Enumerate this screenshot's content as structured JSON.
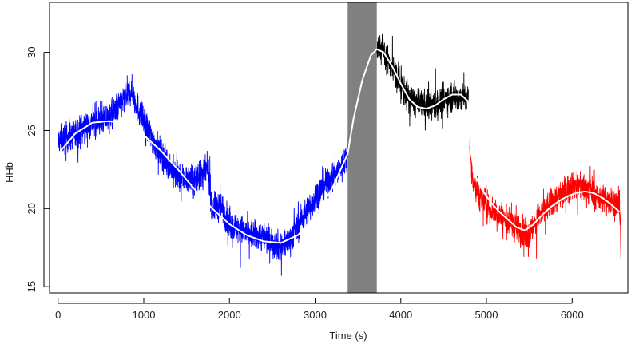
{
  "chart_data": {
    "type": "line",
    "xlabel": "Time (s)",
    "ylabel": "HHb",
    "xlim": [
      -100,
      6650
    ],
    "ylim": [
      14.6,
      33.2
    ],
    "xticks": [
      0,
      1000,
      2000,
      3000,
      4000,
      5000,
      6000
    ],
    "yticks": [
      15,
      20,
      25,
      30
    ],
    "grid": false,
    "shaded_region": {
      "x": [
        3380,
        3720
      ],
      "color": "#808080"
    },
    "series": [
      {
        "style": "noisy",
        "color": "#0000ff",
        "x": [
          0,
          200,
          400,
          600,
          800,
          850,
          1000,
          1200,
          1400,
          1600,
          1750,
          1800,
          1900,
          2000,
          2200,
          2400,
          2600,
          2700,
          2900,
          3100,
          3300,
          3380
        ],
        "y": [
          24.3,
          24.8,
          25.5,
          25.8,
          27.2,
          27.6,
          25.5,
          23.5,
          22.0,
          21.8,
          22.5,
          20.0,
          20.2,
          19.0,
          18.4,
          18.2,
          17.5,
          18.0,
          19.8,
          21.5,
          22.6,
          23.5
        ]
      },
      {
        "style": "noisy",
        "color": "#000000",
        "x": [
          3720,
          3800,
          3900,
          4000,
          4100,
          4200,
          4300,
          4400,
          4500,
          4600,
          4700,
          4790
        ],
        "y": [
          30.5,
          30.0,
          29.0,
          27.9,
          27.0,
          26.7,
          26.6,
          26.6,
          26.9,
          27.2,
          27.1,
          27.0
        ]
      },
      {
        "style": "noisy",
        "color": "#ff0000",
        "x": [
          4790,
          4830,
          4900,
          5000,
          5100,
          5200,
          5300,
          5400,
          5500,
          5600,
          5700,
          5800,
          5900,
          6000,
          6100,
          6200,
          6300,
          6400,
          6500,
          6560,
          6570
        ],
        "y": [
          25.8,
          22.2,
          21.0,
          20.2,
          19.8,
          19.4,
          19.0,
          18.6,
          18.3,
          19.4,
          20.0,
          20.6,
          21.0,
          21.6,
          21.4,
          21.2,
          20.8,
          20.6,
          20.4,
          20.0,
          16.5
        ]
      },
      {
        "style": "smooth",
        "color": "#ffffff",
        "x": [
          0,
          200,
          400,
          600,
          800,
          1000,
          1200,
          1400,
          1600,
          1800,
          2000,
          2200,
          2400,
          2600,
          2800,
          3000,
          3200,
          3380
        ],
        "y": [
          23.5,
          24.8,
          25.5,
          25.6,
          25.4,
          24.7,
          23.7,
          22.5,
          21.2,
          20.0,
          19.0,
          18.3,
          17.9,
          17.8,
          18.3,
          19.5,
          21.3,
          23.5
        ]
      },
      {
        "style": "smooth",
        "color": "#ffffff",
        "x": [
          3380,
          3450,
          3550,
          3650,
          3720,
          3800,
          3900,
          4000,
          4100,
          4200,
          4300,
          4400,
          4500,
          4600,
          4700,
          4780
        ],
        "y": [
          23.5,
          25.8,
          28.2,
          29.8,
          30.2,
          30.0,
          29.1,
          28.0,
          27.0,
          26.5,
          26.4,
          26.6,
          27.0,
          27.3,
          27.3,
          26.9
        ]
      },
      {
        "style": "smooth",
        "color": "#ffffff",
        "x": [
          4780,
          4810,
          4860,
          4950,
          5050,
          5150,
          5250,
          5350,
          5450,
          5550,
          5650,
          5750,
          5850,
          5950,
          6050,
          6150,
          6250,
          6350,
          6450,
          6550
        ],
        "y": [
          26.9,
          24.0,
          22.2,
          21.2,
          20.4,
          19.8,
          19.3,
          18.8,
          18.6,
          19.0,
          19.6,
          20.1,
          20.5,
          20.8,
          21.0,
          21.1,
          21.0,
          20.7,
          20.3,
          19.8
        ]
      }
    ]
  }
}
